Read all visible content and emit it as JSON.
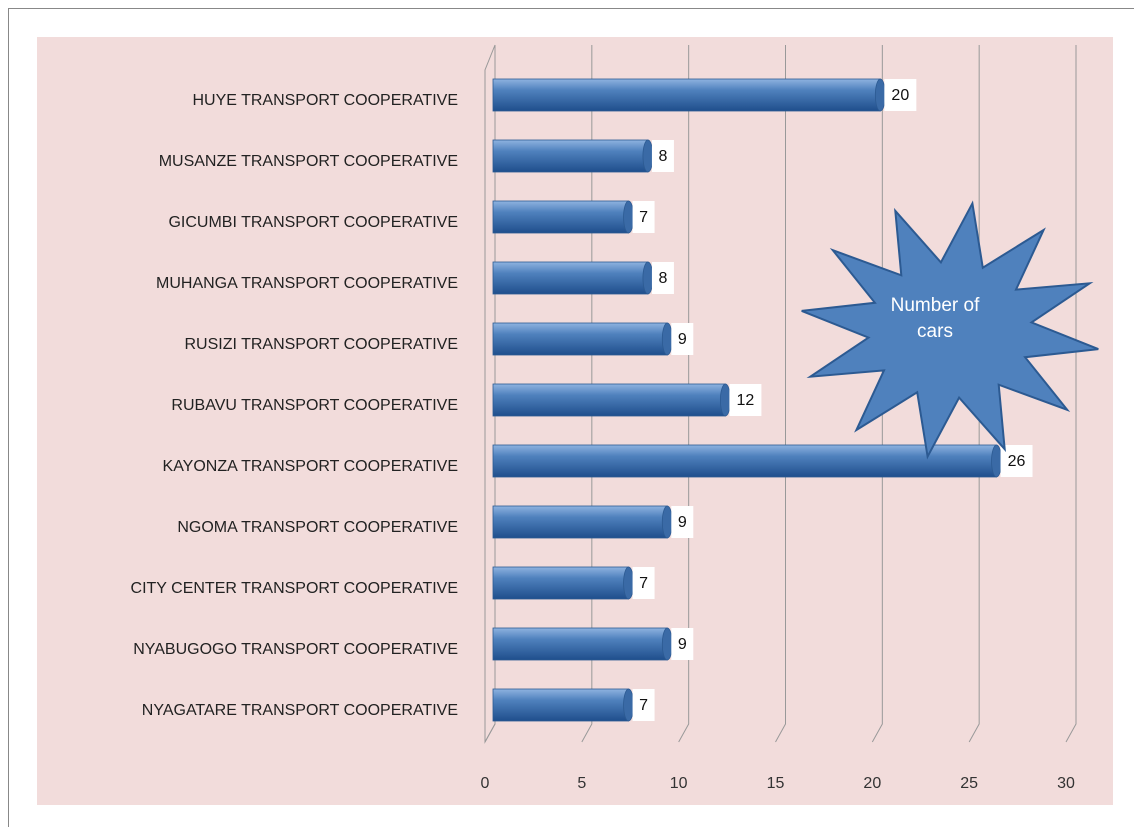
{
  "chart_data": {
    "type": "barh",
    "annotation": "Number of cars",
    "categories": [
      "HUYE TRANSPORT COOPERATIVE",
      "MUSANZE TRANSPORT COOPERATIVE",
      "GICUMBI TRANSPORT COOPERATIVE",
      "MUHANGA TRANSPORT COOPERATIVE",
      "RUSIZI TRANSPORT COOPERATIVE",
      "RUBAVU TRANSPORT COOPERATIVE",
      "KAYONZA TRANSPORT COOPERATIVE",
      "NGOMA TRANSPORT COOPERATIVE",
      "CITY CENTER TRANSPORT COOPERATIVE",
      "NYABUGOGO TRANSPORT COOPERATIVE",
      "NYAGATARE TRANSPORT COOPERATIVE"
    ],
    "values": [
      20,
      8,
      7,
      8,
      9,
      12,
      26,
      9,
      7,
      9,
      7
    ],
    "color": "#4f81bd",
    "xlim": [
      0,
      30
    ],
    "xticks": [
      0,
      5,
      10,
      15,
      20,
      25,
      30
    ],
    "grid": true
  }
}
